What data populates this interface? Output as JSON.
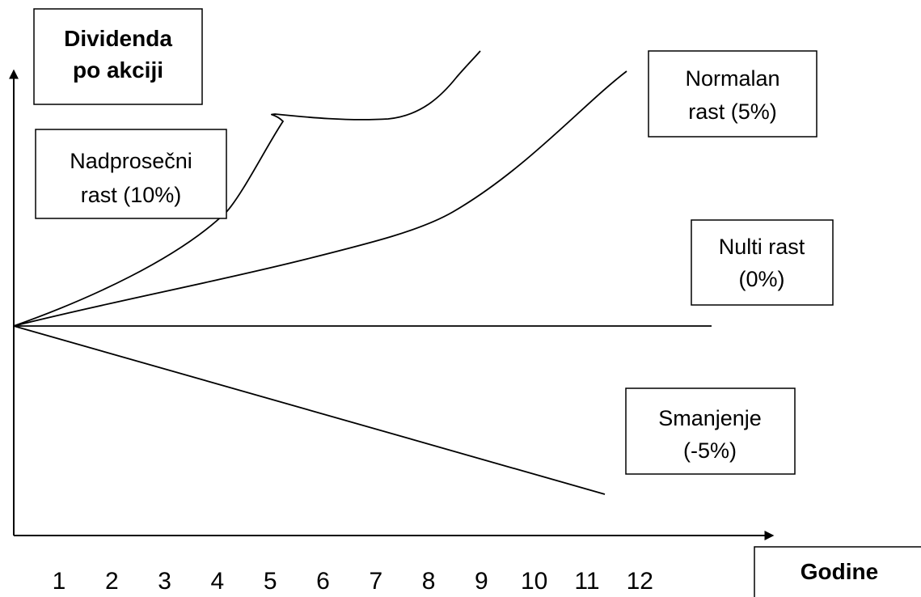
{
  "chart_data": {
    "type": "line",
    "x": [
      1,
      2,
      3,
      4,
      5,
      6,
      7,
      8,
      9,
      10,
      11,
      12
    ],
    "xlabel": "Godine",
    "ylabel": [
      "Dividenda",
      "po akciji"
    ],
    "series": [
      {
        "name": [
          "Nadprosečni",
          "rast (10%)"
        ]
      },
      {
        "name": [
          "Normalan",
          "rast (5%)"
        ]
      },
      {
        "name": [
          "Nulti rast",
          "(0%)"
        ]
      },
      {
        "name": [
          "Smanjenje",
          "(-5%)"
        ]
      }
    ],
    "grid": false
  }
}
